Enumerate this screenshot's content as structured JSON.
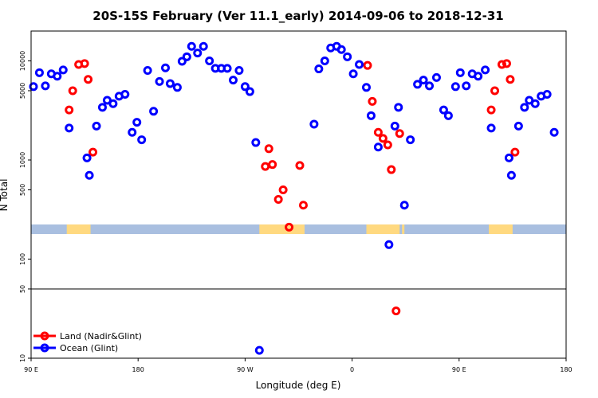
{
  "chart_data": {
    "type": "scatter",
    "title": "20S-15S February (Ver 11.1_early)   2014-09-06 to 2018-12-31",
    "xlabel": "Longitude (deg E)",
    "ylabel": "N Total",
    "y_scale": "log",
    "xlim": [
      90,
      540
    ],
    "ylim": [
      10,
      20000
    ],
    "x_ticks": [
      {
        "value": 90,
        "label": "90 E"
      },
      {
        "value": 180,
        "label": "180"
      },
      {
        "value": 270,
        "label": "90 W"
      },
      {
        "value": 360,
        "label": "0"
      },
      {
        "value": 450,
        "label": "90 E"
      },
      {
        "value": 540,
        "label": "180"
      }
    ],
    "y_ticks": [
      {
        "value": 10,
        "label": "10"
      },
      {
        "value": 50,
        "label": "50"
      },
      {
        "value": 100,
        "label": "100"
      },
      {
        "value": 500,
        "label": "500"
      },
      {
        "value": 1000,
        "label": "1000"
      },
      {
        "value": 5000,
        "label": "5000"
      },
      {
        "value": 10000,
        "label": "10000"
      }
    ],
    "reference_line": 50,
    "land_sea_strip_y": 200,
    "grid": false,
    "legend_position": "bottom-left",
    "series": [
      {
        "name": "Land (Nadir&Glint)",
        "color": "#ff0000",
        "points": [
          [
            122,
            3200
          ],
          [
            125,
            5000
          ],
          [
            130,
            9200
          ],
          [
            135,
            9400
          ],
          [
            138,
            6500
          ],
          [
            142,
            1200
          ],
          [
            287,
            860
          ],
          [
            290,
            1300
          ],
          [
            293,
            900
          ],
          [
            298,
            400
          ],
          [
            302,
            500
          ],
          [
            307,
            210
          ],
          [
            316,
            880
          ],
          [
            319,
            350
          ],
          [
            373,
            9000
          ],
          [
            377,
            3900
          ],
          [
            382,
            1900
          ],
          [
            386,
            1650
          ],
          [
            390,
            1420
          ],
          [
            393,
            800
          ],
          [
            397,
            30
          ],
          [
            400,
            1850
          ],
          [
            477,
            3200
          ],
          [
            480,
            5000
          ],
          [
            486,
            9200
          ],
          [
            490,
            9400
          ],
          [
            493,
            6500
          ],
          [
            497,
            1200
          ]
        ]
      },
      {
        "name": "Ocean (Glint)",
        "color": "#0000ff",
        "points": [
          [
            92,
            5500
          ],
          [
            97,
            7600
          ],
          [
            102,
            5600
          ],
          [
            107,
            7400
          ],
          [
            112,
            7000
          ],
          [
            117,
            8100
          ],
          [
            122,
            2100
          ],
          [
            137,
            1050
          ],
          [
            139,
            700
          ],
          [
            145,
            2200
          ],
          [
            150,
            3400
          ],
          [
            154,
            4000
          ],
          [
            159,
            3700
          ],
          [
            164,
            4400
          ],
          [
            169,
            4600
          ],
          [
            175,
            1900
          ],
          [
            179,
            2400
          ],
          [
            183,
            1600
          ],
          [
            188,
            8000
          ],
          [
            193,
            3100
          ],
          [
            198,
            6200
          ],
          [
            203,
            8500
          ],
          [
            207,
            5900
          ],
          [
            213,
            5400
          ],
          [
            217,
            9900
          ],
          [
            221,
            11000
          ],
          [
            225,
            14000
          ],
          [
            230,
            12000
          ],
          [
            235,
            14000
          ],
          [
            240,
            10000
          ],
          [
            245,
            8400
          ],
          [
            250,
            8400
          ],
          [
            255,
            8400
          ],
          [
            260,
            6400
          ],
          [
            265,
            8000
          ],
          [
            270,
            5500
          ],
          [
            274,
            4900
          ],
          [
            279,
            1500
          ],
          [
            282,
            12
          ],
          [
            328,
            2300
          ],
          [
            332,
            8300
          ],
          [
            337,
            10000
          ],
          [
            342,
            13500
          ],
          [
            347,
            14000
          ],
          [
            351,
            13000
          ],
          [
            356,
            11000
          ],
          [
            361,
            7400
          ],
          [
            366,
            9200
          ],
          [
            372,
            5400
          ],
          [
            376,
            2800
          ],
          [
            382,
            1350
          ],
          [
            391,
            140
          ],
          [
            396,
            2200
          ],
          [
            399,
            3400
          ],
          [
            404,
            350
          ],
          [
            409,
            1600
          ],
          [
            415,
            5800
          ],
          [
            420,
            6400
          ],
          [
            425,
            5600
          ],
          [
            431,
            6800
          ],
          [
            437,
            3200
          ],
          [
            441,
            2800
          ],
          [
            447,
            5500
          ],
          [
            451,
            7600
          ],
          [
            456,
            5600
          ],
          [
            461,
            7400
          ],
          [
            466,
            7000
          ],
          [
            472,
            8100
          ],
          [
            477,
            2100
          ],
          [
            492,
            1050
          ],
          [
            494,
            700
          ],
          [
            500,
            2200
          ],
          [
            505,
            3400
          ],
          [
            509,
            4000
          ],
          [
            514,
            3700
          ],
          [
            519,
            4400
          ],
          [
            524,
            4600
          ],
          [
            530,
            1900
          ]
        ]
      }
    ],
    "land_segments": [
      [
        120,
        140
      ],
      [
        282,
        320
      ],
      [
        372,
        400
      ],
      [
        402,
        404
      ],
      [
        475,
        495
      ]
    ]
  },
  "colors": {
    "ocean_strip": "#a9bfe0",
    "land_strip": "#ffd980",
    "axis": "#000000"
  }
}
